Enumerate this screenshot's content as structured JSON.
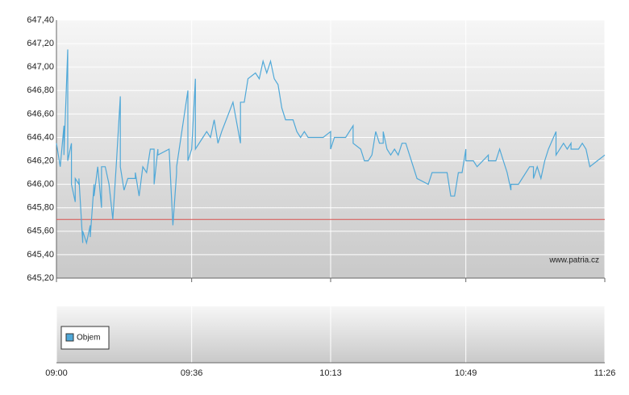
{
  "chart_data": {
    "type": "line",
    "watermark": "www.patria.cz",
    "legend": "Objem",
    "x": [
      "09:00",
      "09:01",
      "09:02",
      "09:02",
      "09:03",
      "09:03",
      "09:04",
      "09:04",
      "09:05",
      "09:05",
      "09:06",
      "09:06",
      "09:07",
      "09:07",
      "09:08",
      "09:09",
      "09:09",
      "09:10",
      "09:10",
      "09:11",
      "09:12",
      "09:12",
      "09:13",
      "09:14",
      "09:15",
      "09:16",
      "09:17",
      "09:17",
      "09:18",
      "09:19",
      "09:21",
      "09:21",
      "09:22",
      "09:23",
      "09:24",
      "09:25",
      "09:26",
      "09:26",
      "09:27",
      "09:27",
      "09:30",
      "09:31",
      "09:32",
      "09:32",
      "09:35",
      "09:35",
      "09:36",
      "09:37",
      "09:37",
      "09:39",
      "09:40",
      "09:41",
      "09:42",
      "09:43",
      "09:44",
      "09:47",
      "09:49",
      "09:49",
      "09:50",
      "09:51",
      "09:53",
      "09:54",
      "09:55",
      "09:56",
      "09:57",
      "09:58",
      "09:59",
      "10:00",
      "10:01",
      "10:03",
      "10:04",
      "10:05",
      "10:06",
      "10:07",
      "10:11",
      "10:13",
      "10:13",
      "10:14",
      "10:17",
      "10:19",
      "10:19",
      "10:21",
      "10:22",
      "10:23",
      "10:24",
      "10:25",
      "10:26",
      "10:27",
      "10:27",
      "10:28",
      "10:29",
      "10:30",
      "10:31",
      "10:31",
      "10:32",
      "10:33",
      "10:36",
      "10:39",
      "10:40",
      "10:44",
      "10:45",
      "10:46",
      "10:47",
      "10:48",
      "10:49",
      "10:49",
      "10:51",
      "10:52",
      "10:55",
      "10:55",
      "10:57",
      "10:58",
      "10:59",
      "11:00",
      "11:01",
      "11:01",
      "11:03",
      "11:06",
      "11:07",
      "11:07",
      "11:08",
      "11:09",
      "11:10",
      "11:11",
      "11:13",
      "11:13",
      "11:15",
      "11:16",
      "11:17",
      "11:17",
      "11:19",
      "11:20",
      "11:21",
      "11:22",
      "11:24",
      "11:26"
    ],
    "series": [
      {
        "color": "#4fa8d8",
        "values": [
          646.35,
          646.15,
          646.5,
          646.25,
          647.15,
          646.2,
          646.35,
          646.0,
          645.85,
          646.05,
          646.0,
          646.05,
          645.5,
          645.6,
          645.5,
          645.65,
          645.55,
          646.0,
          645.9,
          646.15,
          645.8,
          646.15,
          646.15,
          646.0,
          645.7,
          646.2,
          646.75,
          646.15,
          645.95,
          646.05,
          646.05,
          646.1,
          645.9,
          646.15,
          646.1,
          646.3,
          646.3,
          646.0,
          646.3,
          646.25,
          646.3,
          645.65,
          646.1,
          646.15,
          646.8,
          646.2,
          646.3,
          646.9,
          646.3,
          646.4,
          646.45,
          646.4,
          646.55,
          646.35,
          646.45,
          646.7,
          646.35,
          646.7,
          646.7,
          646.9,
          646.95,
          646.9,
          647.05,
          646.95,
          647.05,
          646.9,
          646.85,
          646.65,
          646.55,
          646.55,
          646.45,
          646.4,
          646.45,
          646.4,
          646.4,
          646.45,
          646.3,
          646.4,
          646.4,
          646.5,
          646.35,
          646.3,
          646.2,
          646.2,
          646.25,
          646.45,
          646.35,
          646.35,
          646.45,
          646.3,
          646.25,
          646.3,
          646.25,
          646.25,
          646.35,
          646.35,
          646.05,
          646.0,
          646.1,
          646.1,
          645.9,
          645.9,
          646.1,
          646.1,
          646.3,
          646.2,
          646.2,
          646.15,
          646.25,
          646.2,
          646.2,
          646.3,
          646.2,
          646.1,
          645.95,
          646.0,
          646.0,
          646.15,
          646.15,
          646.05,
          646.15,
          646.05,
          646.2,
          646.3,
          646.45,
          646.25,
          646.35,
          646.3,
          646.35,
          646.3,
          646.3,
          646.35,
          646.3,
          646.15,
          646.2,
          646.25
        ]
      }
    ],
    "reference_line": {
      "value": 645.7,
      "color": "#d9534f"
    },
    "xlim": [
      "09:00",
      "11:26"
    ],
    "xticks": [
      "09:00",
      "09:36",
      "10:13",
      "10:49",
      "11:26"
    ],
    "ylim": [
      645.2,
      647.4
    ],
    "yticks": [
      {
        "value": 645.2,
        "label": "645,20"
      },
      {
        "value": 645.4,
        "label": "645,40"
      },
      {
        "value": 645.6,
        "label": "645,60"
      },
      {
        "value": 645.8,
        "label": "645,80"
      },
      {
        "value": 646.0,
        "label": "646,00"
      },
      {
        "value": 646.2,
        "label": "646,20"
      },
      {
        "value": 646.4,
        "label": "646,40"
      },
      {
        "value": 646.6,
        "label": "646,60"
      },
      {
        "value": 646.8,
        "label": "646,80"
      },
      {
        "value": 647.0,
        "label": "647,00"
      },
      {
        "value": 647.2,
        "label": "647,20"
      },
      {
        "value": 647.4,
        "label": "647,40"
      }
    ],
    "grid": true
  }
}
